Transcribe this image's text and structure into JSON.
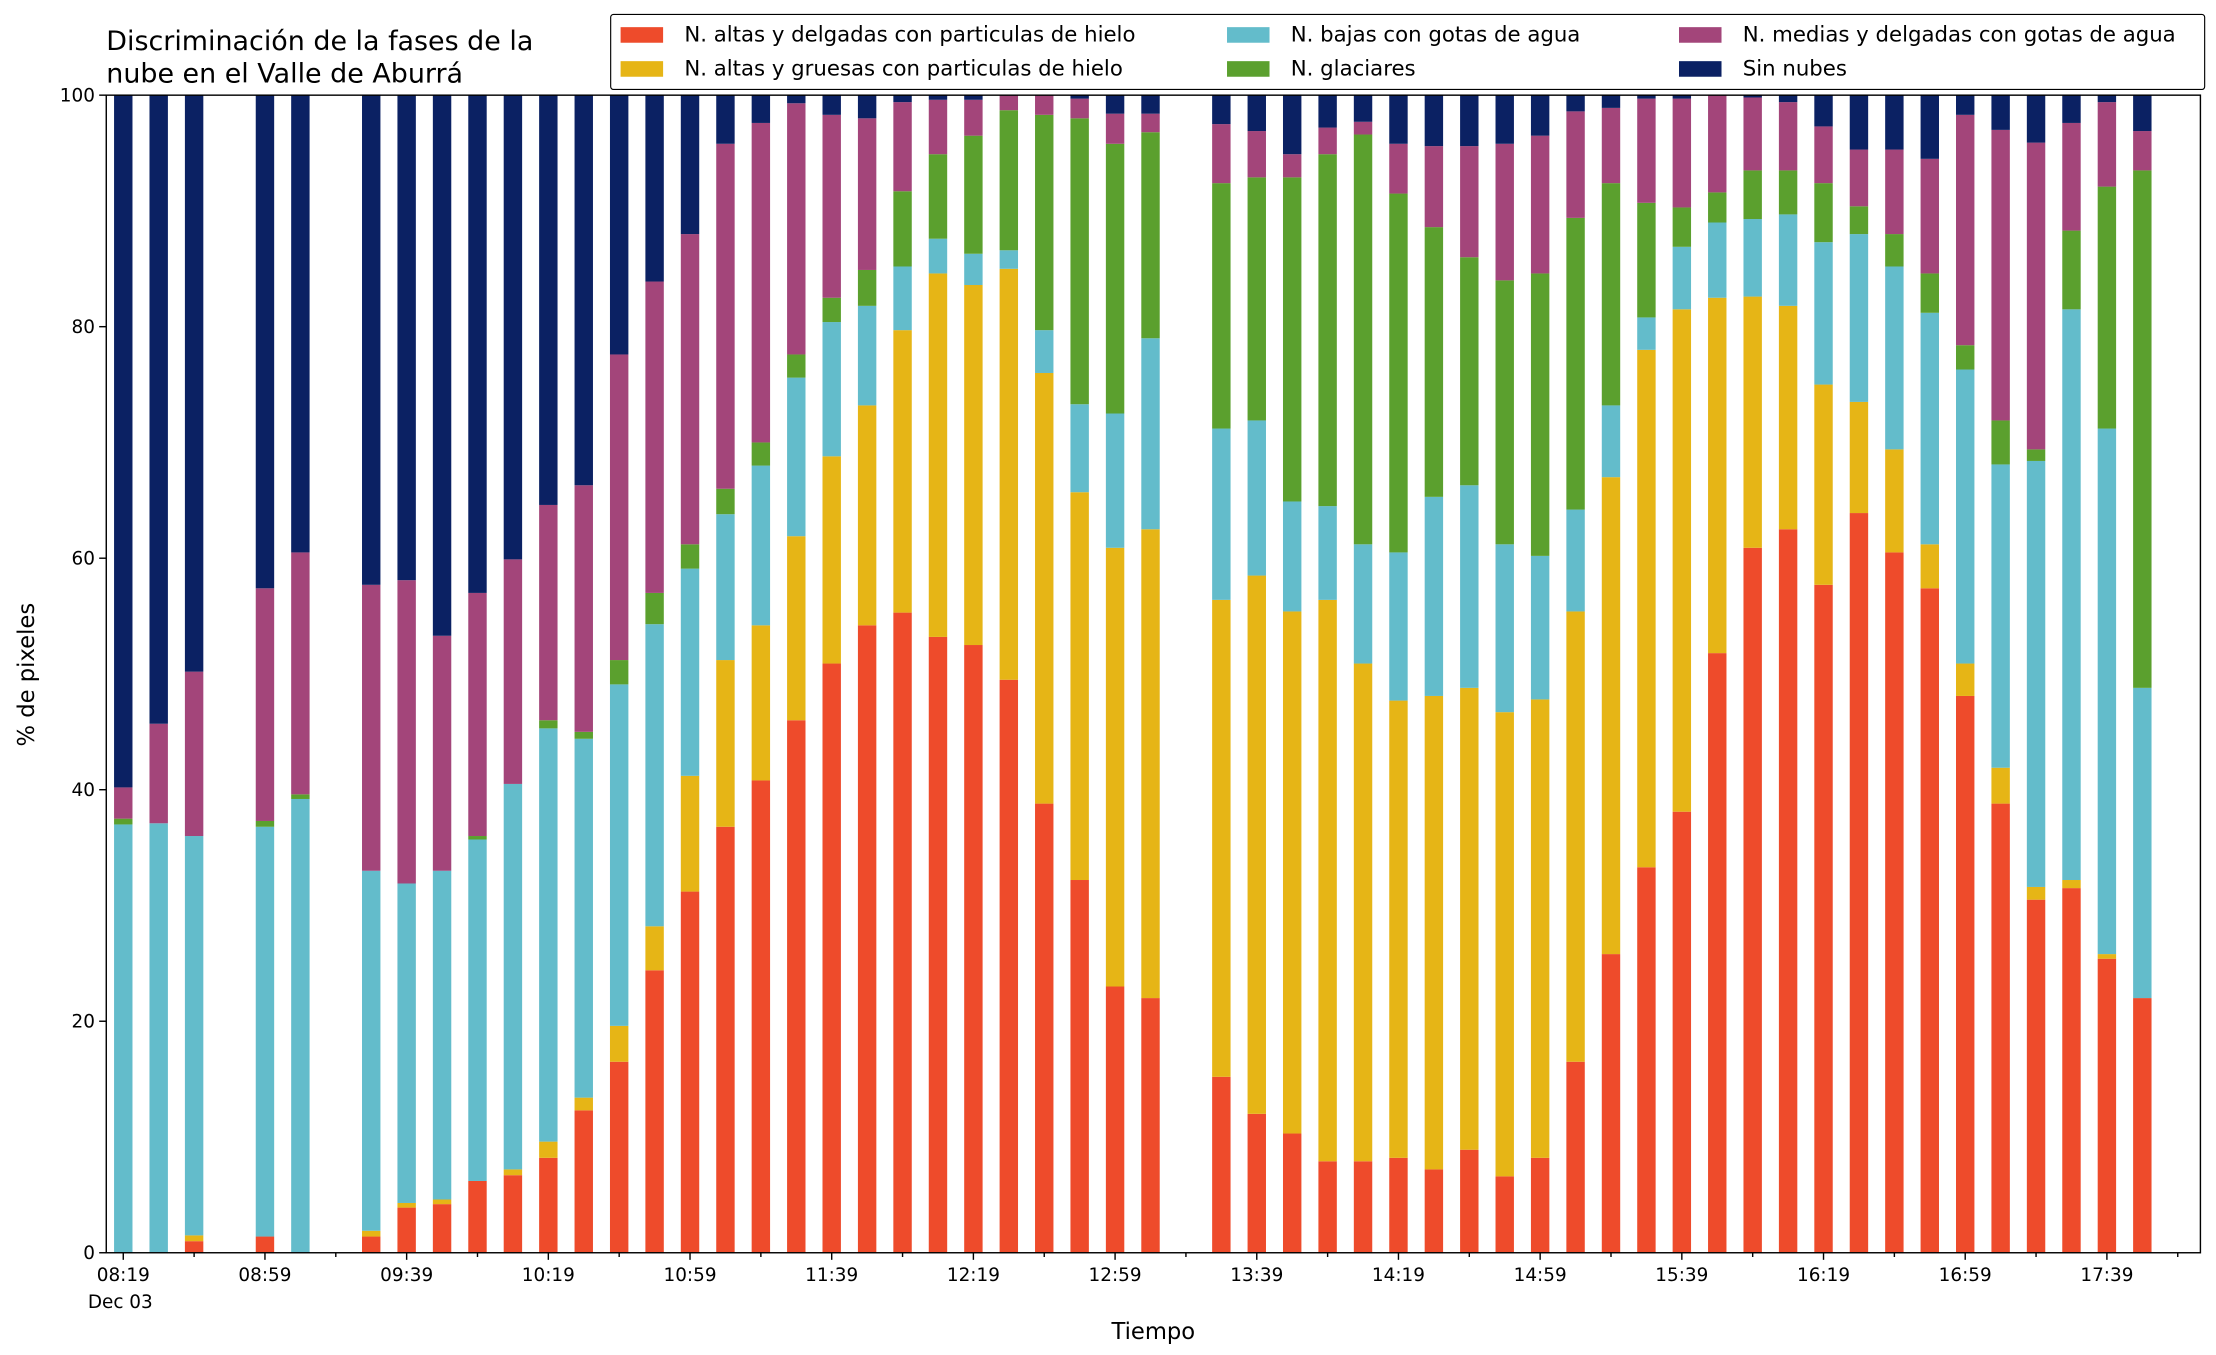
{
  "chart_data": {
    "type": "stacked_bar",
    "title": [
      "Discriminación de la fases de la",
      "nube en el Valle de Aburrá"
    ],
    "xlabel": "Tiempo",
    "ylabel": "% de pixeles",
    "date_label": "Dec 03",
    "categories": [
      "08:19",
      null,
      null,
      null,
      "08:59",
      null,
      null,
      null,
      "09:39",
      null,
      null,
      null,
      "10:19",
      null,
      null,
      null,
      "10:59",
      null,
      null,
      null,
      "11:39",
      null,
      null,
      null,
      "12:19",
      null,
      null,
      null,
      "12:59",
      null,
      null,
      null,
      "13:39",
      null,
      null,
      null,
      "14:19",
      null,
      null,
      null,
      "14:59",
      null,
      null,
      null,
      "15:39",
      null,
      null,
      null,
      "16:19",
      null,
      null,
      null,
      "16:59",
      null,
      null,
      null,
      "17:39",
      null
    ],
    "ylim": [
      0,
      100
    ],
    "yticks": [
      0,
      20,
      40,
      60,
      80,
      100
    ],
    "legend": "top-right",
    "series": [
      {
        "name": "N. altas y delgadas con particulas de hielo",
        "color": "#ee4b2b",
        "values": [
          0,
          0,
          1,
          null,
          1.4,
          0,
          null,
          1.4,
          3.9,
          4.2,
          6.2,
          6.7,
          8.2,
          12.3,
          16.5,
          24.4,
          31.2,
          36.8,
          40.8,
          46,
          50.9,
          54.2,
          55.3,
          53.2,
          52.5,
          49.5,
          38.8,
          32.2,
          23,
          22,
          null,
          15.2,
          12,
          10.3,
          7.9,
          7.9,
          8.2,
          7.2,
          8.9,
          6.6,
          8.2,
          16.5,
          25.8,
          33.3,
          38.1,
          51.8,
          60.9,
          62.5,
          57.7,
          63.9,
          60.5,
          57.4,
          48.1,
          38.8,
          30.5,
          31.5,
          25.4,
          22
        ]
      },
      {
        "name": "N. altas y gruesas con particulas de hielo",
        "color": "#e6b516",
        "values": [
          0,
          0,
          0.5,
          null,
          0,
          0,
          null,
          0.5,
          0.4,
          0.4,
          0,
          0.5,
          1.4,
          1.1,
          3.1,
          3.8,
          10,
          14.4,
          13.4,
          15.9,
          17.9,
          19,
          24.4,
          31.4,
          31.1,
          35.5,
          37.2,
          33.5,
          37.9,
          40.5,
          null,
          41.2,
          46.5,
          45.1,
          48.5,
          43,
          39.5,
          40.9,
          39.9,
          40.1,
          39.6,
          38.9,
          41.2,
          44.7,
          43.4,
          30.7,
          21.7,
          19.3,
          17.3,
          9.6,
          8.9,
          3.8,
          2.8,
          3.1,
          1.1,
          0.7,
          0.4,
          0
        ]
      },
      {
        "name": "N. bajas con gotas de agua",
        "color": "#63bccb",
        "values": [
          37,
          37.1,
          34.5,
          null,
          35.4,
          39.2,
          null,
          31.1,
          27.6,
          28.4,
          29.5,
          33.3,
          35.7,
          31,
          29.5,
          26.1,
          17.9,
          12.6,
          13.8,
          13.7,
          11.6,
          8.6,
          5.5,
          3,
          2.7,
          1.6,
          3.7,
          7.6,
          11.6,
          16.5,
          null,
          14.8,
          13.4,
          9.5,
          8.1,
          10.3,
          12.8,
          17.2,
          17.5,
          14.5,
          12.4,
          8.8,
          6.2,
          2.8,
          5.4,
          6.5,
          6.7,
          7.9,
          12.3,
          14.5,
          15.8,
          20,
          25.4,
          26.2,
          36.8,
          49.3,
          45.4,
          26.8
        ]
      },
      {
        "name": "N. glaciares",
        "color": "#5ba02e",
        "values": [
          0.5,
          0,
          0,
          null,
          0.5,
          0.4,
          null,
          0,
          0,
          0,
          0.3,
          0,
          0.7,
          0.6,
          2.1,
          2.7,
          2.1,
          2.2,
          2,
          2,
          2.1,
          3.1,
          6.5,
          7.3,
          10.2,
          12.1,
          18.6,
          24.7,
          23.3,
          17.8,
          null,
          21.2,
          21,
          28,
          30.4,
          35.4,
          31,
          23.3,
          19.7,
          22.8,
          24.4,
          25.2,
          19.2,
          9.9,
          3.4,
          2.6,
          4.2,
          3.8,
          5.1,
          2.4,
          2.8,
          3.4,
          2.1,
          3.8,
          1,
          6.8,
          20.9,
          44.7
        ]
      },
      {
        "name": "N. medias y delgadas con gotas de agua",
        "color": "#a3457a",
        "values": [
          2.7,
          8.6,
          14.2,
          null,
          20.1,
          20.9,
          null,
          24.7,
          26.2,
          20.3,
          21,
          19.4,
          18.6,
          21.3,
          26.4,
          26.9,
          26.8,
          29.8,
          27.6,
          21.7,
          15.8,
          13.1,
          7.7,
          4.7,
          3.1,
          1.3,
          1.7,
          1.7,
          2.6,
          1.6,
          null,
          5.1,
          4,
          2,
          2.3,
          1.1,
          4.3,
          7,
          9.6,
          11.8,
          11.9,
          9.2,
          6.5,
          9,
          9.4,
          8.4,
          6.3,
          5.9,
          4.9,
          4.9,
          7.3,
          9.9,
          19.9,
          25.1,
          26.5,
          9.3,
          7.3,
          3.4
        ]
      },
      {
        "name": "Sin nubes",
        "color": "#0b2163",
        "values": [
          59.8,
          54.3,
          49.8,
          null,
          42.6,
          39.5,
          null,
          42.3,
          41.9,
          46.7,
          43,
          40.1,
          35.4,
          33.7,
          22.4,
          16.1,
          12,
          4.2,
          2.4,
          0.7,
          1.7,
          2,
          0.6,
          0.4,
          0.4,
          0,
          0,
          0.3,
          1.6,
          1.6,
          null,
          2.5,
          3.1,
          5.1,
          2.8,
          2.3,
          4.2,
          4.4,
          4.4,
          4.2,
          3.5,
          1.4,
          1.1,
          0.3,
          0.3,
          0,
          0.2,
          0.6,
          2.7,
          4.7,
          4.7,
          5.5,
          1.7,
          3,
          4.1,
          2.4,
          0.6,
          3.1
        ]
      }
    ]
  }
}
